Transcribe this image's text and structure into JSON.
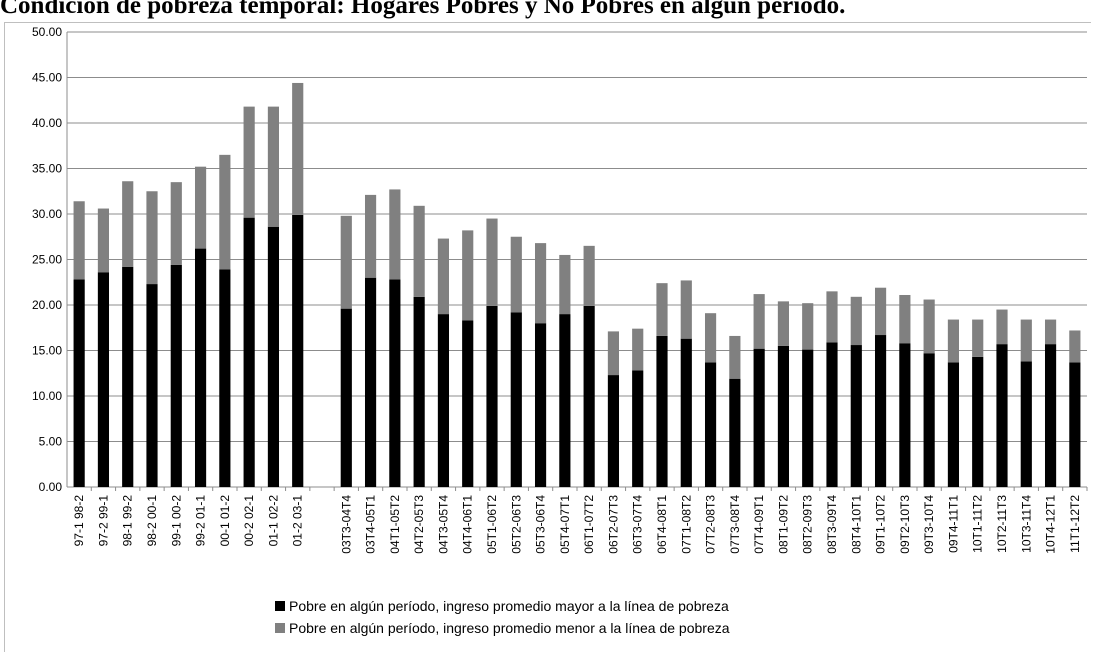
{
  "chart_data": {
    "type": "bar",
    "stacked": true,
    "title": "Condición de pobreza temporal: Hogares Pobres y No Pobres en algún período.",
    "xlabel": "",
    "ylabel": "",
    "ylim": [
      0,
      50
    ],
    "y_ticks": [
      "0.00",
      "5.00",
      "10.00",
      "15.00",
      "20.00",
      "25.00",
      "30.00",
      "35.00",
      "40.00",
      "45.00",
      "50.00"
    ],
    "grid": true,
    "legend_position": "bottom",
    "categories": [
      "97-1 98-2",
      "97-2 99-1",
      "98-1 99-2",
      "98-2 00-1",
      "99-1 00-2",
      "99-2 01-1",
      "00-1 01-2",
      "00-2 02-1",
      "01-1 02-2",
      "01-2 03-1",
      "",
      "03T3-04T4",
      "03T4-05T1",
      "04T1-05T2",
      "04T2-05T3",
      "04T3-05T4",
      "04T4-06T1",
      "05T1-06T2",
      "05T2-06T3",
      "05T3-06T4",
      "05T4-07T1",
      "06T1-07T2",
      "06T2-07T3",
      "06T3-07T4",
      "06T4-08T1",
      "07T1-08T2",
      "07T2-08T3",
      "07T3-08T4",
      "07T4-09T1",
      "08T1-09T2",
      "08T2-09T3",
      "08T3-09T4",
      "08T4-10T1",
      "09T1-10T2",
      "09T2-10T3",
      "09T3-10T4",
      "09T4-11T1",
      "10T1-11T2",
      "10T2-11T3",
      "10T3-11T4",
      "10T4-12T1",
      "11T1-12T2"
    ],
    "series": [
      {
        "name": "Pobre en algún período, ingreso promedio mayor a la línea de pobreza",
        "color": "#000000",
        "values": [
          22.8,
          23.6,
          24.2,
          22.3,
          24.4,
          26.2,
          23.9,
          29.6,
          28.6,
          29.9,
          null,
          19.6,
          23.0,
          22.8,
          20.9,
          19.0,
          18.3,
          19.9,
          19.2,
          18.0,
          19.0,
          19.9,
          12.3,
          12.8,
          16.6,
          16.3,
          13.7,
          11.9,
          15.2,
          15.5,
          15.1,
          15.9,
          15.6,
          16.7,
          15.8,
          14.7,
          13.7,
          14.3,
          15.7,
          13.8,
          15.7,
          13.7
        ]
      },
      {
        "name": "Pobre en algún período, ingreso promedio menor a la línea de pobreza",
        "color": "#808080",
        "values": [
          8.6,
          7.0,
          9.4,
          10.2,
          9.1,
          9.0,
          12.6,
          12.2,
          13.2,
          14.5,
          null,
          10.2,
          9.1,
          9.9,
          10.0,
          8.3,
          9.9,
          9.6,
          8.3,
          8.8,
          6.5,
          6.6,
          4.8,
          4.6,
          5.8,
          6.4,
          5.4,
          4.7,
          6.0,
          4.9,
          5.1,
          5.6,
          5.3,
          5.2,
          5.3,
          5.9,
          4.7,
          4.1,
          3.8,
          4.6,
          2.7,
          3.5
        ]
      }
    ]
  }
}
